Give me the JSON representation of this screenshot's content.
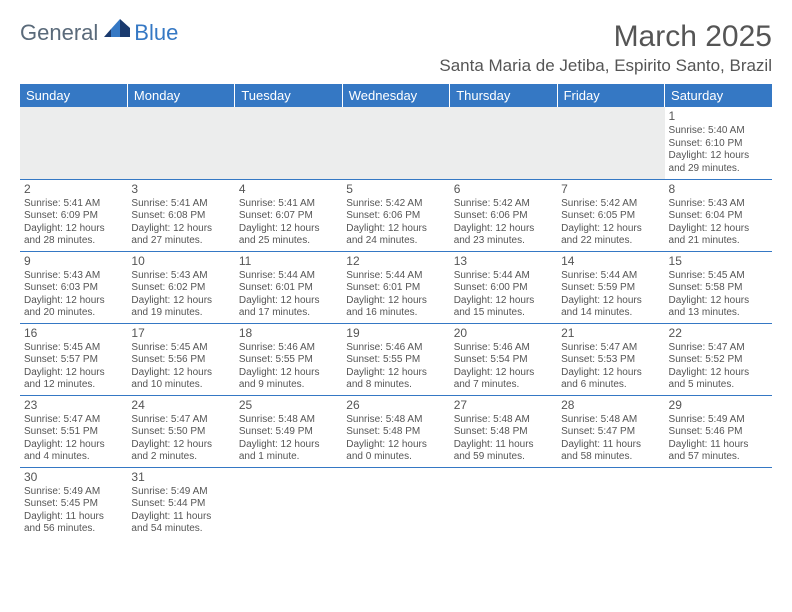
{
  "logo": {
    "text1": "General",
    "text2": "Blue"
  },
  "title": {
    "month": "March 2025",
    "location": "Santa Maria de Jetiba, Espirito Santo, Brazil"
  },
  "colors": {
    "headerBg": "#3578c4",
    "border": "#3578c4",
    "textGray": "#555555",
    "emptyBg": "#eceded"
  },
  "weekdays": [
    "Sunday",
    "Monday",
    "Tuesday",
    "Wednesday",
    "Thursday",
    "Friday",
    "Saturday"
  ],
  "weeks": [
    [
      null,
      null,
      null,
      null,
      null,
      null,
      {
        "d": "1",
        "sr": "Sunrise: 5:40 AM",
        "ss": "Sunset: 6:10 PM",
        "dl1": "Daylight: 12 hours",
        "dl2": "and 29 minutes."
      }
    ],
    [
      {
        "d": "2",
        "sr": "Sunrise: 5:41 AM",
        "ss": "Sunset: 6:09 PM",
        "dl1": "Daylight: 12 hours",
        "dl2": "and 28 minutes."
      },
      {
        "d": "3",
        "sr": "Sunrise: 5:41 AM",
        "ss": "Sunset: 6:08 PM",
        "dl1": "Daylight: 12 hours",
        "dl2": "and 27 minutes."
      },
      {
        "d": "4",
        "sr": "Sunrise: 5:41 AM",
        "ss": "Sunset: 6:07 PM",
        "dl1": "Daylight: 12 hours",
        "dl2": "and 25 minutes."
      },
      {
        "d": "5",
        "sr": "Sunrise: 5:42 AM",
        "ss": "Sunset: 6:06 PM",
        "dl1": "Daylight: 12 hours",
        "dl2": "and 24 minutes."
      },
      {
        "d": "6",
        "sr": "Sunrise: 5:42 AM",
        "ss": "Sunset: 6:06 PM",
        "dl1": "Daylight: 12 hours",
        "dl2": "and 23 minutes."
      },
      {
        "d": "7",
        "sr": "Sunrise: 5:42 AM",
        "ss": "Sunset: 6:05 PM",
        "dl1": "Daylight: 12 hours",
        "dl2": "and 22 minutes."
      },
      {
        "d": "8",
        "sr": "Sunrise: 5:43 AM",
        "ss": "Sunset: 6:04 PM",
        "dl1": "Daylight: 12 hours",
        "dl2": "and 21 minutes."
      }
    ],
    [
      {
        "d": "9",
        "sr": "Sunrise: 5:43 AM",
        "ss": "Sunset: 6:03 PM",
        "dl1": "Daylight: 12 hours",
        "dl2": "and 20 minutes."
      },
      {
        "d": "10",
        "sr": "Sunrise: 5:43 AM",
        "ss": "Sunset: 6:02 PM",
        "dl1": "Daylight: 12 hours",
        "dl2": "and 19 minutes."
      },
      {
        "d": "11",
        "sr": "Sunrise: 5:44 AM",
        "ss": "Sunset: 6:01 PM",
        "dl1": "Daylight: 12 hours",
        "dl2": "and 17 minutes."
      },
      {
        "d": "12",
        "sr": "Sunrise: 5:44 AM",
        "ss": "Sunset: 6:01 PM",
        "dl1": "Daylight: 12 hours",
        "dl2": "and 16 minutes."
      },
      {
        "d": "13",
        "sr": "Sunrise: 5:44 AM",
        "ss": "Sunset: 6:00 PM",
        "dl1": "Daylight: 12 hours",
        "dl2": "and 15 minutes."
      },
      {
        "d": "14",
        "sr": "Sunrise: 5:44 AM",
        "ss": "Sunset: 5:59 PM",
        "dl1": "Daylight: 12 hours",
        "dl2": "and 14 minutes."
      },
      {
        "d": "15",
        "sr": "Sunrise: 5:45 AM",
        "ss": "Sunset: 5:58 PM",
        "dl1": "Daylight: 12 hours",
        "dl2": "and 13 minutes."
      }
    ],
    [
      {
        "d": "16",
        "sr": "Sunrise: 5:45 AM",
        "ss": "Sunset: 5:57 PM",
        "dl1": "Daylight: 12 hours",
        "dl2": "and 12 minutes."
      },
      {
        "d": "17",
        "sr": "Sunrise: 5:45 AM",
        "ss": "Sunset: 5:56 PM",
        "dl1": "Daylight: 12 hours",
        "dl2": "and 10 minutes."
      },
      {
        "d": "18",
        "sr": "Sunrise: 5:46 AM",
        "ss": "Sunset: 5:55 PM",
        "dl1": "Daylight: 12 hours",
        "dl2": "and 9 minutes."
      },
      {
        "d": "19",
        "sr": "Sunrise: 5:46 AM",
        "ss": "Sunset: 5:55 PM",
        "dl1": "Daylight: 12 hours",
        "dl2": "and 8 minutes."
      },
      {
        "d": "20",
        "sr": "Sunrise: 5:46 AM",
        "ss": "Sunset: 5:54 PM",
        "dl1": "Daylight: 12 hours",
        "dl2": "and 7 minutes."
      },
      {
        "d": "21",
        "sr": "Sunrise: 5:47 AM",
        "ss": "Sunset: 5:53 PM",
        "dl1": "Daylight: 12 hours",
        "dl2": "and 6 minutes."
      },
      {
        "d": "22",
        "sr": "Sunrise: 5:47 AM",
        "ss": "Sunset: 5:52 PM",
        "dl1": "Daylight: 12 hours",
        "dl2": "and 5 minutes."
      }
    ],
    [
      {
        "d": "23",
        "sr": "Sunrise: 5:47 AM",
        "ss": "Sunset: 5:51 PM",
        "dl1": "Daylight: 12 hours",
        "dl2": "and 4 minutes."
      },
      {
        "d": "24",
        "sr": "Sunrise: 5:47 AM",
        "ss": "Sunset: 5:50 PM",
        "dl1": "Daylight: 12 hours",
        "dl2": "and 2 minutes."
      },
      {
        "d": "25",
        "sr": "Sunrise: 5:48 AM",
        "ss": "Sunset: 5:49 PM",
        "dl1": "Daylight: 12 hours",
        "dl2": "and 1 minute."
      },
      {
        "d": "26",
        "sr": "Sunrise: 5:48 AM",
        "ss": "Sunset: 5:48 PM",
        "dl1": "Daylight: 12 hours",
        "dl2": "and 0 minutes."
      },
      {
        "d": "27",
        "sr": "Sunrise: 5:48 AM",
        "ss": "Sunset: 5:48 PM",
        "dl1": "Daylight: 11 hours",
        "dl2": "and 59 minutes."
      },
      {
        "d": "28",
        "sr": "Sunrise: 5:48 AM",
        "ss": "Sunset: 5:47 PM",
        "dl1": "Daylight: 11 hours",
        "dl2": "and 58 minutes."
      },
      {
        "d": "29",
        "sr": "Sunrise: 5:49 AM",
        "ss": "Sunset: 5:46 PM",
        "dl1": "Daylight: 11 hours",
        "dl2": "and 57 minutes."
      }
    ],
    [
      {
        "d": "30",
        "sr": "Sunrise: 5:49 AM",
        "ss": "Sunset: 5:45 PM",
        "dl1": "Daylight: 11 hours",
        "dl2": "and 56 minutes."
      },
      {
        "d": "31",
        "sr": "Sunrise: 5:49 AM",
        "ss": "Sunset: 5:44 PM",
        "dl1": "Daylight: 11 hours",
        "dl2": "and 54 minutes."
      },
      null,
      null,
      null,
      null,
      null
    ]
  ]
}
